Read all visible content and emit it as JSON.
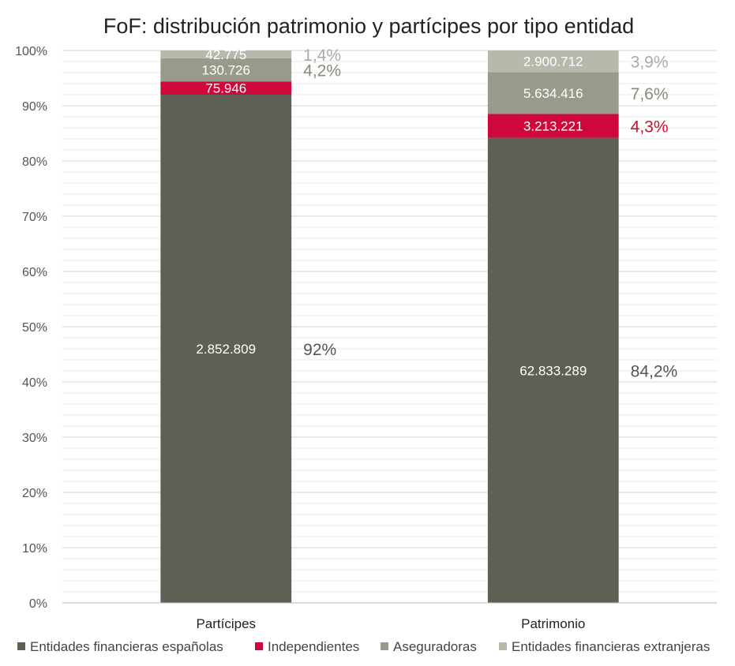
{
  "chart_data": {
    "type": "bar",
    "stacked": true,
    "title": "FoF: distribución patrimonio y partícipes por tipo entidad",
    "categories": [
      "Partícipes",
      "Patrimonio"
    ],
    "ylim": [
      0,
      100
    ],
    "yticks": [
      "0%",
      "10%",
      "20%",
      "30%",
      "40%",
      "50%",
      "60%",
      "70%",
      "80%",
      "90%",
      "100%"
    ],
    "grid": true,
    "legend_position": "bottom",
    "series": [
      {
        "name": "Entidades financieras españolas",
        "color": "#5f6055",
        "percent_color": "#555555",
        "percent": [
          92.0,
          84.2
        ],
        "value_labels": [
          "2.852.809",
          "62.833.289"
        ],
        "percent_labels": [
          "92%",
          "84,2%"
        ]
      },
      {
        "name": "Independientes",
        "color": "#d0073a",
        "percent_color": "#c8102e",
        "percent": [
          2.4,
          4.3
        ],
        "value_labels": [
          "75.946",
          "3.213.221"
        ],
        "percent_labels": [
          "",
          "4,3%"
        ]
      },
      {
        "name": "Aseguradoras",
        "color": "#999b8a",
        "percent_color": "#888a7a",
        "percent": [
          4.2,
          7.6
        ],
        "value_labels": [
          "130.726",
          "5.634.416"
        ],
        "percent_labels": [
          "4,2%",
          "7,6%"
        ]
      },
      {
        "name": "Entidades financieras extranjeras",
        "color": "#b7b9ad",
        "percent_color": "#aaaaaa",
        "percent": [
          1.4,
          3.9
        ],
        "value_labels": [
          "42.775",
          "2.900.712"
        ],
        "percent_labels": [
          "1,4%",
          "3,9%"
        ]
      }
    ]
  }
}
